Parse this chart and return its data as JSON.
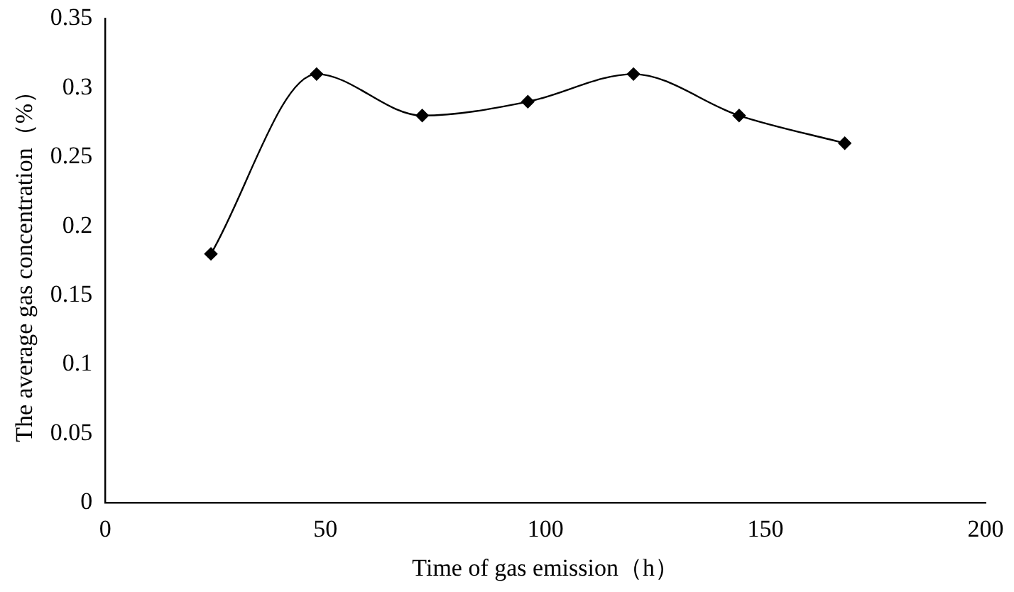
{
  "chart_data": {
    "type": "line",
    "xlabel": "Time of gas emission（h）",
    "ylabel": "The average gas concentration（%）",
    "x": [
      24,
      48,
      72,
      96,
      120,
      144,
      168
    ],
    "series": [
      {
        "color": "#000000",
        "values": [
          0.18,
          0.31,
          0.28,
          0.29,
          0.31,
          0.28,
          0.26
        ]
      }
    ],
    "xlim": [
      0,
      200
    ],
    "xticks": [
      0,
      50,
      100,
      150,
      200
    ],
    "ylim": [
      0,
      0.35
    ],
    "yticks": [
      0,
      0.05,
      0.1,
      0.15,
      0.2,
      0.25,
      0.3,
      0.35
    ],
    "grid": false,
    "legend": false,
    "marker": "diamond",
    "line_style": "solid"
  }
}
